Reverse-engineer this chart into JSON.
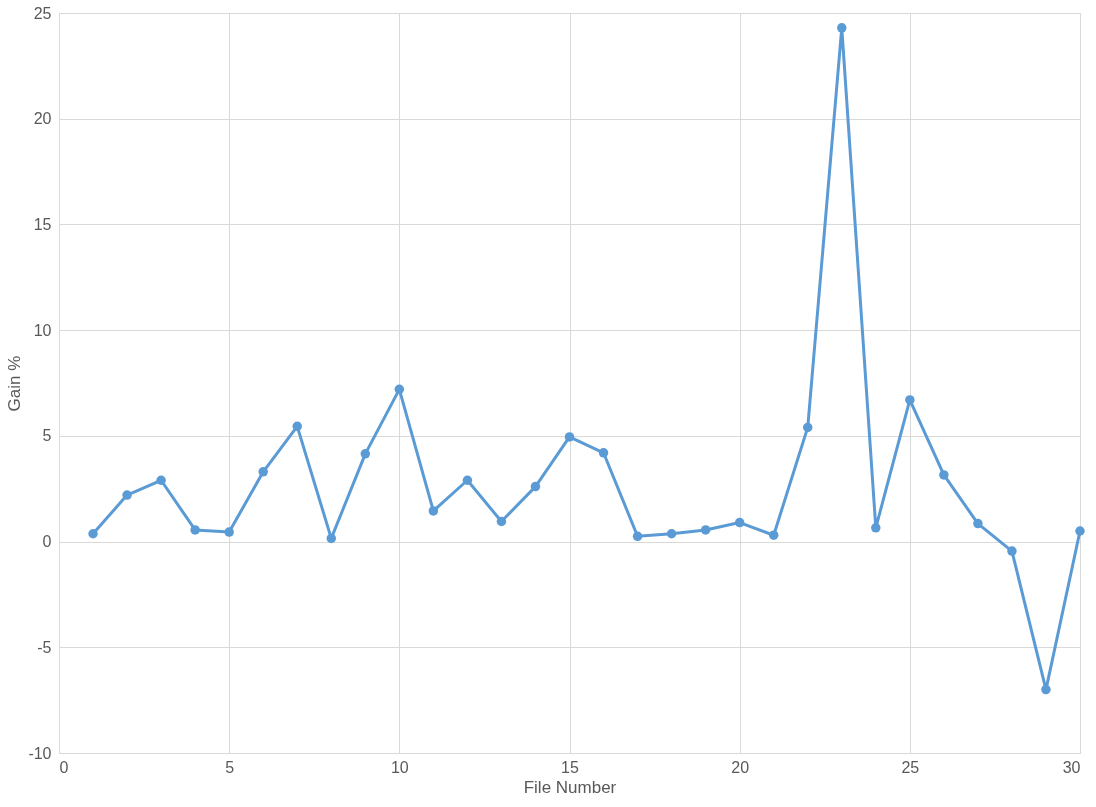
{
  "chart_data": {
    "type": "line",
    "xlabel": "File Number",
    "ylabel": "Gain %",
    "x": [
      1,
      2,
      3,
      4,
      5,
      6,
      7,
      8,
      9,
      10,
      11,
      12,
      13,
      14,
      15,
      16,
      17,
      18,
      19,
      20,
      21,
      22,
      23,
      24,
      25,
      26,
      27,
      28,
      29,
      30
    ],
    "series": [
      {
        "color": "#5b9bd5",
        "values": [
          0.37,
          2.2,
          2.9,
          0.55,
          0.45,
          3.3,
          5.45,
          0.15,
          4.15,
          7.2,
          1.45,
          2.9,
          0.95,
          2.6,
          4.95,
          4.2,
          0.25,
          0.37,
          0.55,
          0.9,
          0.3,
          5.4,
          24.3,
          0.65,
          6.7,
          3.15,
          0.85,
          -0.45,
          -7.0,
          0.5
        ]
      }
    ],
    "xlim": [
      0,
      30
    ],
    "xticks": [
      0,
      5,
      10,
      15,
      20,
      25,
      30
    ],
    "ylim": [
      -10,
      25
    ],
    "yticks": [
      -10,
      -5,
      0,
      5,
      10,
      15,
      20,
      25
    ],
    "grid": true,
    "marker": "circle",
    "line_style": "solid"
  }
}
